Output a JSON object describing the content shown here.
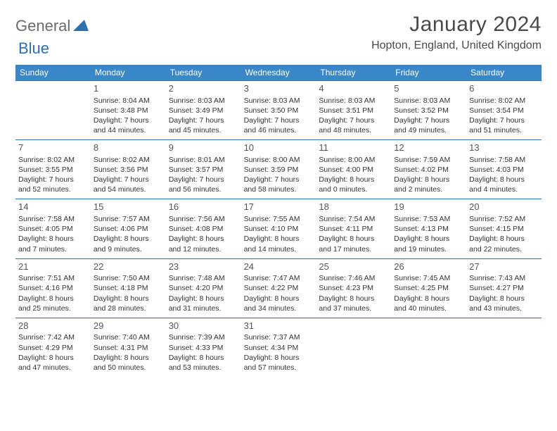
{
  "logo": {
    "part1": "General",
    "part2": "Blue"
  },
  "title": "January 2024",
  "location": "Hopton, England, United Kingdom",
  "colors": {
    "header_bg": "#3a87c7",
    "border": "#2f6fb0",
    "logo_gray": "#6b6b6b",
    "logo_blue": "#2f6fb0"
  },
  "day_names": [
    "Sunday",
    "Monday",
    "Tuesday",
    "Wednesday",
    "Thursday",
    "Friday",
    "Saturday"
  ],
  "weeks": [
    [
      null,
      {
        "n": "1",
        "sr": "Sunrise: 8:04 AM",
        "ss": "Sunset: 3:48 PM",
        "dl": "Daylight: 7 hours and 44 minutes."
      },
      {
        "n": "2",
        "sr": "Sunrise: 8:03 AM",
        "ss": "Sunset: 3:49 PM",
        "dl": "Daylight: 7 hours and 45 minutes."
      },
      {
        "n": "3",
        "sr": "Sunrise: 8:03 AM",
        "ss": "Sunset: 3:50 PM",
        "dl": "Daylight: 7 hours and 46 minutes."
      },
      {
        "n": "4",
        "sr": "Sunrise: 8:03 AM",
        "ss": "Sunset: 3:51 PM",
        "dl": "Daylight: 7 hours and 48 minutes."
      },
      {
        "n": "5",
        "sr": "Sunrise: 8:03 AM",
        "ss": "Sunset: 3:52 PM",
        "dl": "Daylight: 7 hours and 49 minutes."
      },
      {
        "n": "6",
        "sr": "Sunrise: 8:02 AM",
        "ss": "Sunset: 3:54 PM",
        "dl": "Daylight: 7 hours and 51 minutes."
      }
    ],
    [
      {
        "n": "7",
        "sr": "Sunrise: 8:02 AM",
        "ss": "Sunset: 3:55 PM",
        "dl": "Daylight: 7 hours and 52 minutes."
      },
      {
        "n": "8",
        "sr": "Sunrise: 8:02 AM",
        "ss": "Sunset: 3:56 PM",
        "dl": "Daylight: 7 hours and 54 minutes."
      },
      {
        "n": "9",
        "sr": "Sunrise: 8:01 AM",
        "ss": "Sunset: 3:57 PM",
        "dl": "Daylight: 7 hours and 56 minutes."
      },
      {
        "n": "10",
        "sr": "Sunrise: 8:00 AM",
        "ss": "Sunset: 3:59 PM",
        "dl": "Daylight: 7 hours and 58 minutes."
      },
      {
        "n": "11",
        "sr": "Sunrise: 8:00 AM",
        "ss": "Sunset: 4:00 PM",
        "dl": "Daylight: 8 hours and 0 minutes."
      },
      {
        "n": "12",
        "sr": "Sunrise: 7:59 AM",
        "ss": "Sunset: 4:02 PM",
        "dl": "Daylight: 8 hours and 2 minutes."
      },
      {
        "n": "13",
        "sr": "Sunrise: 7:58 AM",
        "ss": "Sunset: 4:03 PM",
        "dl": "Daylight: 8 hours and 4 minutes."
      }
    ],
    [
      {
        "n": "14",
        "sr": "Sunrise: 7:58 AM",
        "ss": "Sunset: 4:05 PM",
        "dl": "Daylight: 8 hours and 7 minutes."
      },
      {
        "n": "15",
        "sr": "Sunrise: 7:57 AM",
        "ss": "Sunset: 4:06 PM",
        "dl": "Daylight: 8 hours and 9 minutes."
      },
      {
        "n": "16",
        "sr": "Sunrise: 7:56 AM",
        "ss": "Sunset: 4:08 PM",
        "dl": "Daylight: 8 hours and 12 minutes."
      },
      {
        "n": "17",
        "sr": "Sunrise: 7:55 AM",
        "ss": "Sunset: 4:10 PM",
        "dl": "Daylight: 8 hours and 14 minutes."
      },
      {
        "n": "18",
        "sr": "Sunrise: 7:54 AM",
        "ss": "Sunset: 4:11 PM",
        "dl": "Daylight: 8 hours and 17 minutes."
      },
      {
        "n": "19",
        "sr": "Sunrise: 7:53 AM",
        "ss": "Sunset: 4:13 PM",
        "dl": "Daylight: 8 hours and 19 minutes."
      },
      {
        "n": "20",
        "sr": "Sunrise: 7:52 AM",
        "ss": "Sunset: 4:15 PM",
        "dl": "Daylight: 8 hours and 22 minutes."
      }
    ],
    [
      {
        "n": "21",
        "sr": "Sunrise: 7:51 AM",
        "ss": "Sunset: 4:16 PM",
        "dl": "Daylight: 8 hours and 25 minutes."
      },
      {
        "n": "22",
        "sr": "Sunrise: 7:50 AM",
        "ss": "Sunset: 4:18 PM",
        "dl": "Daylight: 8 hours and 28 minutes."
      },
      {
        "n": "23",
        "sr": "Sunrise: 7:48 AM",
        "ss": "Sunset: 4:20 PM",
        "dl": "Daylight: 8 hours and 31 minutes."
      },
      {
        "n": "24",
        "sr": "Sunrise: 7:47 AM",
        "ss": "Sunset: 4:22 PM",
        "dl": "Daylight: 8 hours and 34 minutes."
      },
      {
        "n": "25",
        "sr": "Sunrise: 7:46 AM",
        "ss": "Sunset: 4:23 PM",
        "dl": "Daylight: 8 hours and 37 minutes."
      },
      {
        "n": "26",
        "sr": "Sunrise: 7:45 AM",
        "ss": "Sunset: 4:25 PM",
        "dl": "Daylight: 8 hours and 40 minutes."
      },
      {
        "n": "27",
        "sr": "Sunrise: 7:43 AM",
        "ss": "Sunset: 4:27 PM",
        "dl": "Daylight: 8 hours and 43 minutes."
      }
    ],
    [
      {
        "n": "28",
        "sr": "Sunrise: 7:42 AM",
        "ss": "Sunset: 4:29 PM",
        "dl": "Daylight: 8 hours and 47 minutes."
      },
      {
        "n": "29",
        "sr": "Sunrise: 7:40 AM",
        "ss": "Sunset: 4:31 PM",
        "dl": "Daylight: 8 hours and 50 minutes."
      },
      {
        "n": "30",
        "sr": "Sunrise: 7:39 AM",
        "ss": "Sunset: 4:33 PM",
        "dl": "Daylight: 8 hours and 53 minutes."
      },
      {
        "n": "31",
        "sr": "Sunrise: 7:37 AM",
        "ss": "Sunset: 4:34 PM",
        "dl": "Daylight: 8 hours and 57 minutes."
      },
      null,
      null,
      null
    ]
  ]
}
